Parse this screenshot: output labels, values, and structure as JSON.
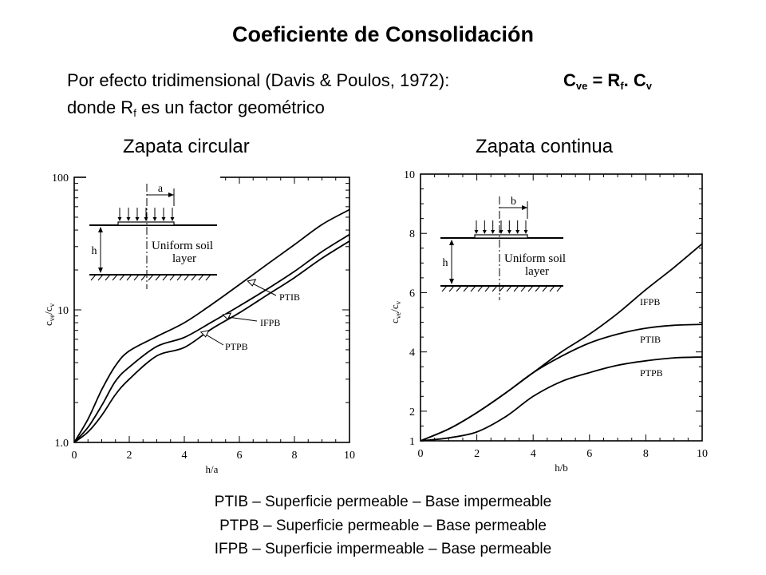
{
  "header": {
    "title": "Coeficiente de Consolidación",
    "line1_text": "Por efecto tridimensional (Davis & Poulos, 1972):",
    "formula": {
      "c1": "C",
      "s1": "ve",
      "c2": " = R",
      "s2": "f",
      "c3": ". C",
      "s3": "v"
    },
    "line2": {
      "t1": "donde R",
      "s1": "f",
      "t2": " es un factor geométrico"
    }
  },
  "chart_data": [
    {
      "type": "line",
      "title": "Zapata circular",
      "xlabel": "h/a",
      "ylabel": "c_ve/c_v",
      "ylabel_parts": {
        "main1": "c",
        "sub1": "ve",
        "main2": "/c",
        "sub2": "v"
      },
      "xlim": [
        0,
        10
      ],
      "ylim": [
        1,
        100
      ],
      "yscale": "log",
      "xticks": [
        "0",
        "2",
        "4",
        "6",
        "8",
        "10"
      ],
      "yticks": [
        "1.0",
        "10",
        "100"
      ],
      "grid": false,
      "series": [
        {
          "name": "PTIB",
          "x": [
            0,
            0.5,
            1,
            1.5,
            2,
            3,
            4,
            5,
            6,
            7,
            8,
            9,
            10
          ],
          "y": [
            1.0,
            1.5,
            2.5,
            3.8,
            4.9,
            6.3,
            8.0,
            11.0,
            15.5,
            22,
            31,
            44,
            57
          ]
        },
        {
          "name": "IFPB",
          "x": [
            0,
            0.5,
            1,
            1.5,
            2,
            3,
            4,
            5,
            6,
            7,
            8,
            9,
            10
          ],
          "y": [
            1.0,
            1.3,
            1.9,
            2.9,
            3.7,
            5.3,
            6.2,
            8.1,
            10.7,
            14.3,
            19.5,
            27.5,
            37
          ]
        },
        {
          "name": "PTPB",
          "x": [
            0,
            0.5,
            1,
            1.5,
            2,
            3,
            4,
            5,
            6,
            7,
            8,
            9,
            10
          ],
          "y": [
            1.0,
            1.2,
            1.6,
            2.3,
            3.0,
            4.5,
            5.2,
            7.2,
            9.5,
            12.9,
            17.5,
            24.5,
            33
          ]
        }
      ],
      "inset": {
        "dimension": "a",
        "text1": "Uniform soil",
        "text2": "layer",
        "depth": "h"
      }
    },
    {
      "type": "line",
      "title": "Zapata continua",
      "xlabel": "h/b",
      "ylabel": "c_ve/c_v",
      "ylabel_parts": {
        "main1": "c",
        "sub1": "ve",
        "main2": "/c",
        "sub2": "v"
      },
      "xlim": [
        0,
        10
      ],
      "ylim": [
        1,
        10
      ],
      "xticks": [
        "0",
        "2",
        "4",
        "6",
        "8",
        "10"
      ],
      "yticks": [
        "1",
        "2",
        "4",
        "6",
        "8",
        "10"
      ],
      "grid": false,
      "series": [
        {
          "name": "IFPB",
          "x": [
            0,
            1,
            2,
            3,
            4,
            5,
            6,
            7,
            8,
            9,
            10
          ],
          "y": [
            1.0,
            1.4,
            1.95,
            2.6,
            3.3,
            4.0,
            4.6,
            5.3,
            6.1,
            6.85,
            7.65
          ]
        },
        {
          "name": "PTIB",
          "x": [
            0,
            1,
            2,
            3,
            4,
            5,
            6,
            7,
            8,
            9,
            10
          ],
          "y": [
            1.0,
            1.4,
            1.95,
            2.6,
            3.3,
            3.85,
            4.3,
            4.6,
            4.8,
            4.9,
            4.93
          ]
        },
        {
          "name": "PTPB",
          "x": [
            0,
            1,
            2,
            3,
            4,
            5,
            6,
            7,
            8,
            9,
            10
          ],
          "y": [
            1.0,
            1.1,
            1.3,
            1.8,
            2.5,
            3.0,
            3.3,
            3.55,
            3.7,
            3.8,
            3.83
          ]
        }
      ],
      "inset": {
        "dimension": "b",
        "text1": "Uniform soil",
        "text2": "layer",
        "depth": "h"
      }
    }
  ],
  "legend": [
    "PTIB – Superficie permeable – Base impermeable",
    "PTPB – Superficie permeable – Base permeable",
    "IFPB – Superficie impermeable – Base permeable"
  ]
}
